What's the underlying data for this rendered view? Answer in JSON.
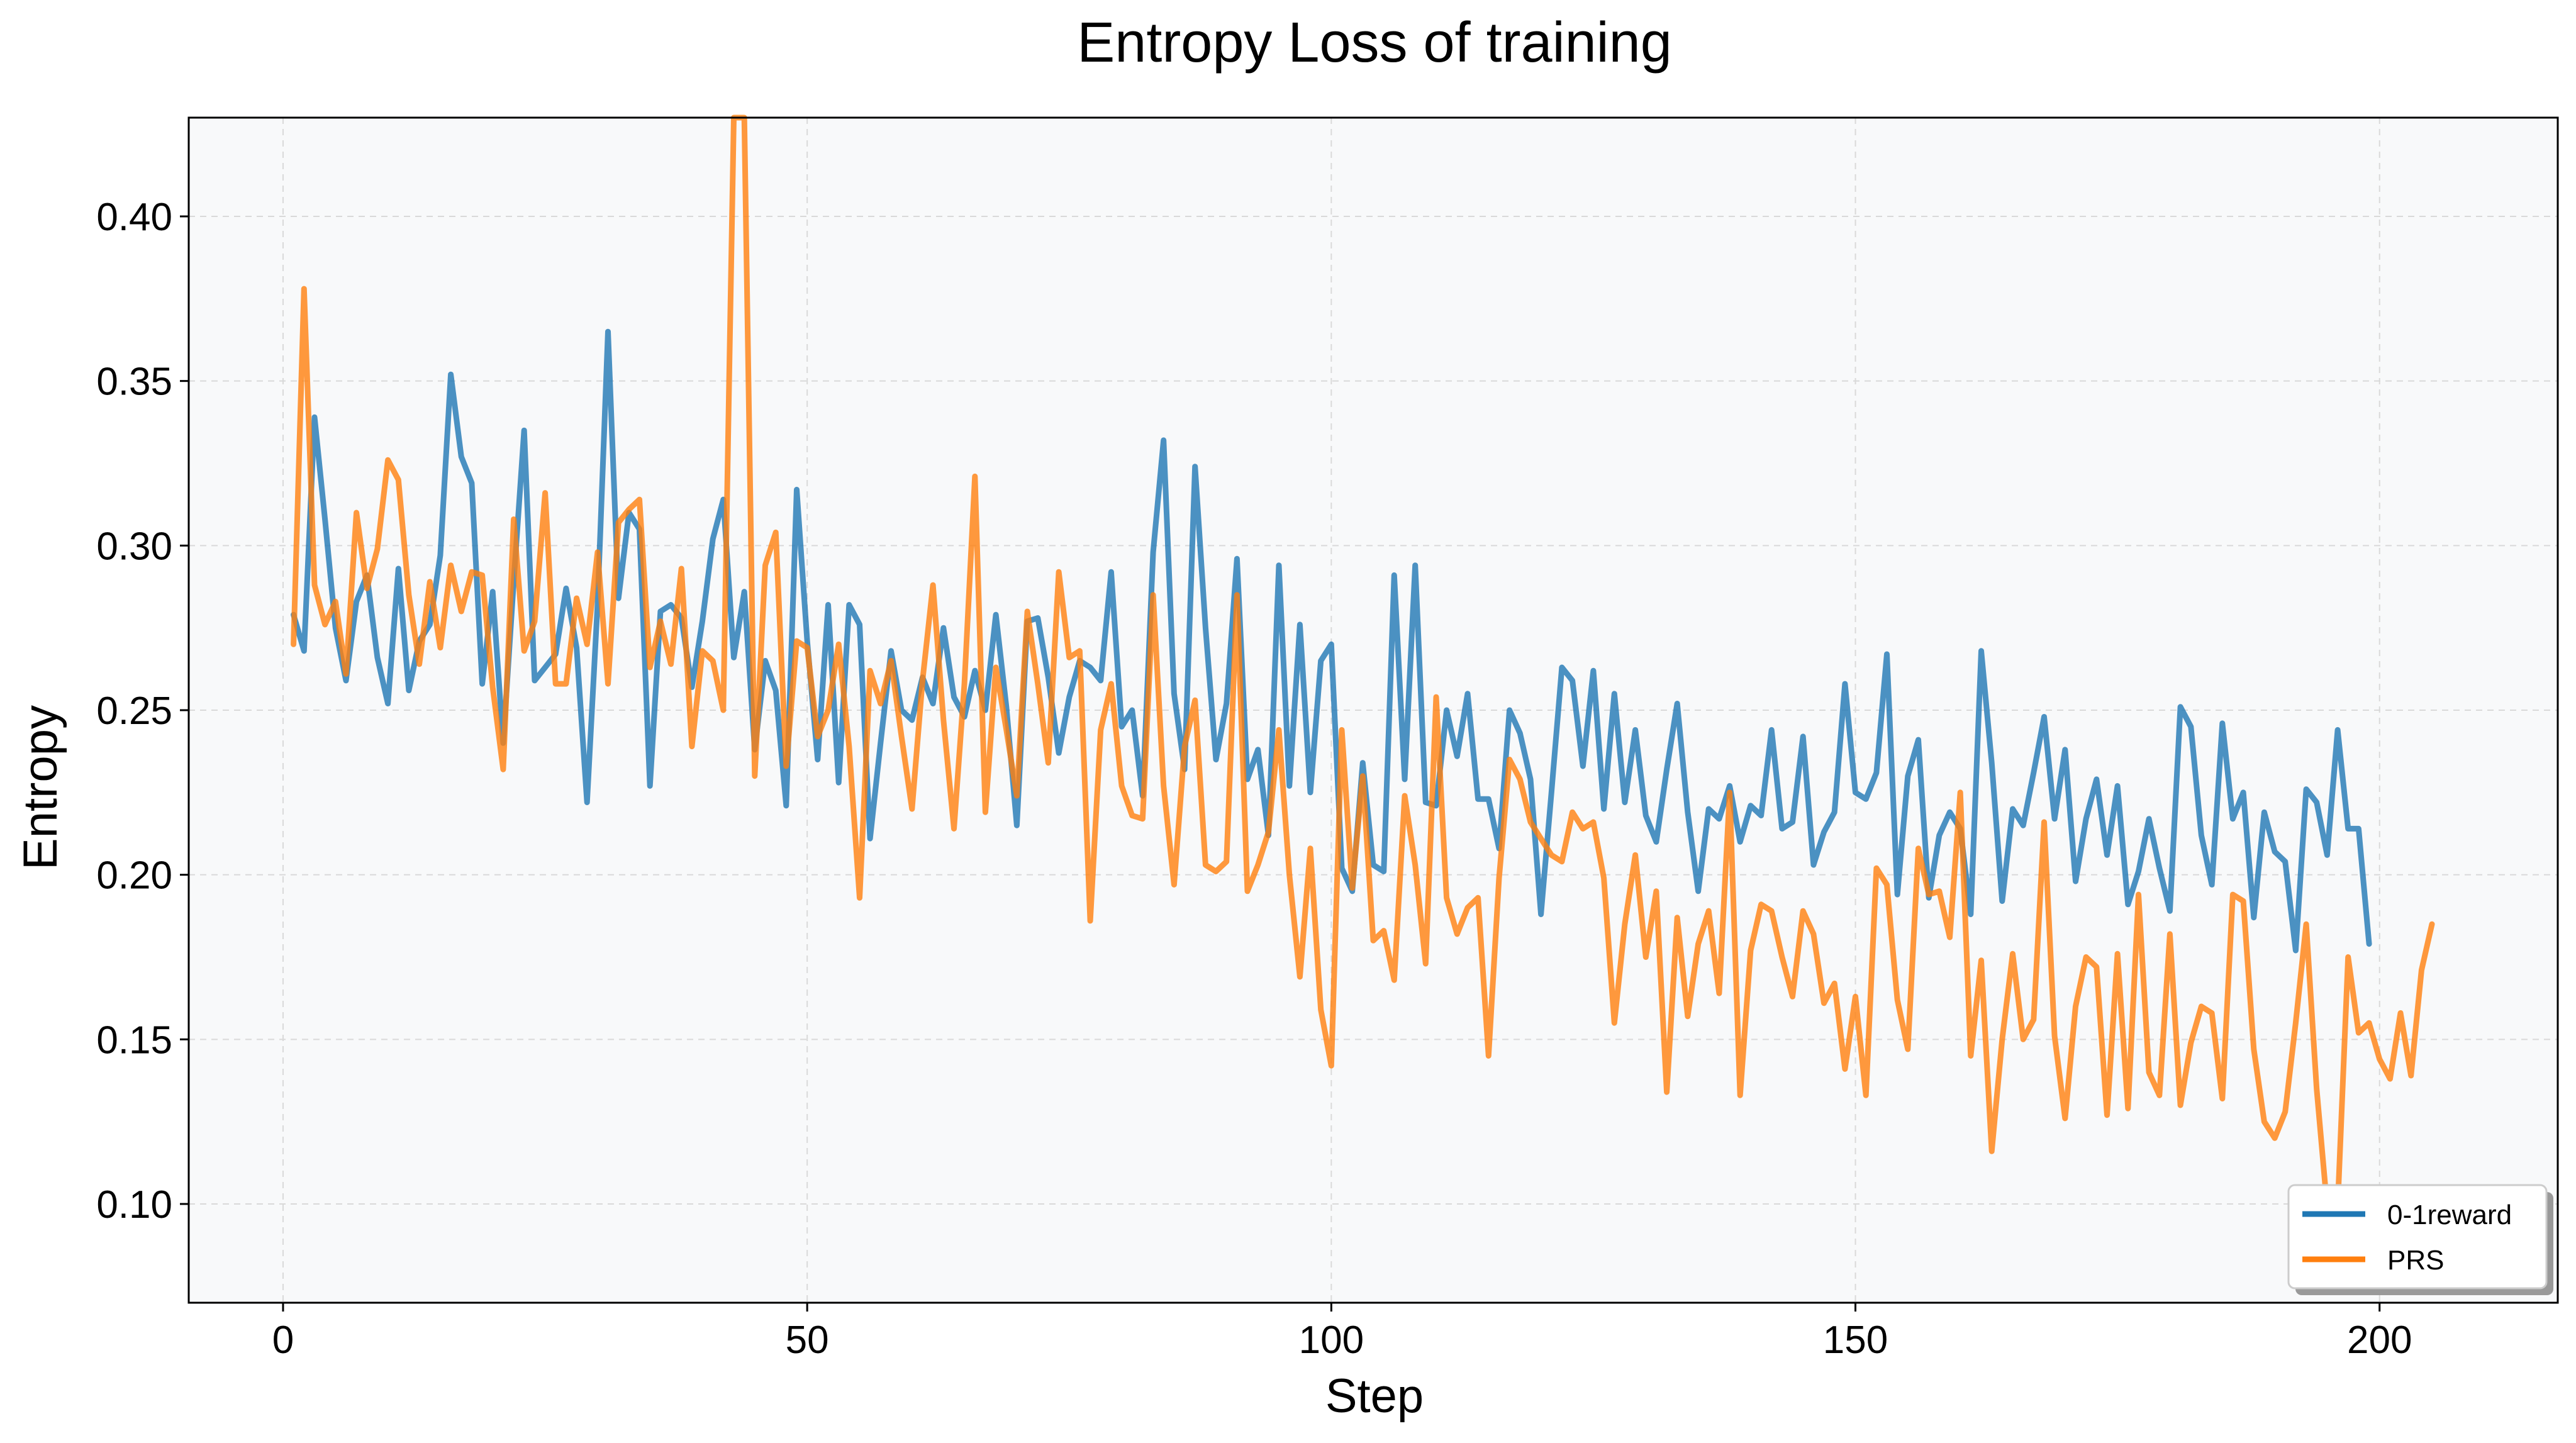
{
  "chart_data": {
    "type": "line",
    "title": "Entropy Loss of training",
    "xlabel": "Step",
    "ylabel": "Entropy",
    "xlim": [
      -9,
      217
    ],
    "ylim": [
      0.07,
      0.43
    ],
    "xticks": [
      0,
      50,
      100,
      150,
      200
    ],
    "yticks": [
      0.1,
      0.15,
      0.2,
      0.25,
      0.3,
      0.35,
      0.4
    ],
    "xtick_labels": [
      "0",
      "50",
      "100",
      "150",
      "200"
    ],
    "ytick_labels": [
      "0.10",
      "0.15",
      "0.20",
      "0.25",
      "0.30",
      "0.35",
      "0.40"
    ],
    "grid": true,
    "legend_position": "bottom-right",
    "series": [
      {
        "name": "0-1reward",
        "color": "#1f77b4",
        "x_start": 1,
        "values": [
          0.279,
          0.268,
          0.339,
          0.308,
          0.275,
          0.259,
          0.283,
          0.291,
          0.266,
          0.252,
          0.293,
          0.256,
          0.271,
          0.276,
          0.297,
          0.352,
          0.327,
          0.319,
          0.258,
          0.286,
          0.24,
          0.289,
          0.335,
          0.259,
          0.263,
          0.267,
          0.287,
          0.269,
          0.222,
          0.282,
          0.365,
          0.284,
          0.31,
          0.305,
          0.227,
          0.28,
          0.282,
          0.278,
          0.257,
          0.277,
          0.302,
          0.314,
          0.266,
          0.286,
          0.238,
          0.265,
          0.256,
          0.221,
          0.317,
          0.271,
          0.235,
          0.282,
          0.228,
          0.282,
          0.276,
          0.211,
          0.24,
          0.268,
          0.25,
          0.247,
          0.26,
          0.252,
          0.275,
          0.254,
          0.248,
          0.262,
          0.25,
          0.279,
          0.251,
          0.215,
          0.277,
          0.278,
          0.26,
          0.237,
          0.254,
          0.265,
          0.263,
          0.259,
          0.292,
          0.245,
          0.25,
          0.224,
          0.298,
          0.332,
          0.255,
          0.232,
          0.324,
          0.275,
          0.235,
          0.252,
          0.296,
          0.229,
          0.238,
          0.212,
          0.294,
          0.227,
          0.276,
          0.225,
          0.265,
          0.27,
          0.202,
          0.195,
          0.234,
          0.203,
          0.201,
          0.291,
          0.229,
          0.294,
          0.222,
          0.221,
          0.25,
          0.236,
          0.255,
          0.223,
          0.223,
          0.208,
          0.25,
          0.243,
          0.229,
          0.188,
          0.225,
          0.263,
          0.259,
          0.233,
          0.262,
          0.22,
          0.255,
          0.222,
          0.244,
          0.218,
          0.21,
          0.232,
          0.252,
          0.219,
          0.195,
          0.22,
          0.217,
          0.227,
          0.21,
          0.221,
          0.218,
          0.244,
          0.214,
          0.216,
          0.242,
          0.203,
          0.213,
          0.219,
          0.258,
          0.225,
          0.223,
          0.231,
          0.267,
          0.194,
          0.23,
          0.241,
          0.193,
          0.212,
          0.219,
          0.214,
          0.188,
          0.268,
          0.234,
          0.192,
          0.22,
          0.215,
          0.231,
          0.248,
          0.217,
          0.238,
          0.198,
          0.217,
          0.229,
          0.206,
          0.227,
          0.191,
          0.201,
          0.217,
          0.202,
          0.189,
          0.251,
          0.245,
          0.212,
          0.197,
          0.246,
          0.217,
          0.225,
          0.187,
          0.219,
          0.207,
          0.204,
          0.177,
          0.226,
          0.222,
          0.206,
          0.244,
          0.214,
          0.214,
          0.179
        ]
      },
      {
        "name": "PRS",
        "color": "#ff7f0e",
        "x_start": 1,
        "values": [
          0.27,
          0.378,
          0.288,
          0.276,
          0.283,
          0.261,
          0.31,
          0.287,
          0.299,
          0.326,
          0.32,
          0.285,
          0.264,
          0.289,
          0.269,
          0.294,
          0.28,
          0.292,
          0.291,
          0.257,
          0.232,
          0.308,
          0.268,
          0.277,
          0.316,
          0.258,
          0.258,
          0.284,
          0.27,
          0.298,
          0.258,
          0.307,
          0.311,
          0.314,
          0.263,
          0.277,
          0.264,
          0.293,
          0.239,
          0.268,
          0.265,
          0.25,
          0.43,
          0.43,
          0.23,
          0.294,
          0.304,
          0.233,
          0.271,
          0.269,
          0.242,
          0.25,
          0.27,
          0.239,
          0.193,
          0.262,
          0.252,
          0.265,
          0.242,
          0.22,
          0.259,
          0.288,
          0.247,
          0.214,
          0.258,
          0.321,
          0.219,
          0.263,
          0.244,
          0.224,
          0.28,
          0.258,
          0.234,
          0.292,
          0.266,
          0.268,
          0.186,
          0.244,
          0.258,
          0.227,
          0.218,
          0.217,
          0.285,
          0.227,
          0.197,
          0.239,
          0.253,
          0.203,
          0.201,
          0.204,
          0.285,
          0.195,
          0.203,
          0.213,
          0.244,
          0.2,
          0.169,
          0.208,
          0.159,
          0.142,
          0.244,
          0.196,
          0.23,
          0.18,
          0.183,
          0.168,
          0.224,
          0.203,
          0.173,
          0.254,
          0.193,
          0.182,
          0.19,
          0.193,
          0.145,
          0.199,
          0.235,
          0.229,
          0.216,
          0.211,
          0.206,
          0.204,
          0.219,
          0.214,
          0.216,
          0.199,
          0.155,
          0.185,
          0.206,
          0.175,
          0.195,
          0.134,
          0.187,
          0.157,
          0.179,
          0.189,
          0.164,
          0.225,
          0.133,
          0.177,
          0.191,
          0.189,
          0.175,
          0.163,
          0.189,
          0.182,
          0.161,
          0.167,
          0.141,
          0.163,
          0.133,
          0.202,
          0.197,
          0.162,
          0.147,
          0.208,
          0.194,
          0.195,
          0.181,
          0.225,
          0.145,
          0.174,
          0.116,
          0.15,
          0.176,
          0.15,
          0.156,
          0.216,
          0.151,
          0.126,
          0.16,
          0.175,
          0.172,
          0.127,
          0.176,
          0.129,
          0.194,
          0.14,
          0.133,
          0.182,
          0.13,
          0.149,
          0.16,
          0.158,
          0.132,
          0.194,
          0.192,
          0.147,
          0.125,
          0.12,
          0.128,
          0.155,
          0.185,
          0.135,
          0.099,
          0.099,
          0.175,
          0.152,
          0.155,
          0.144,
          0.138,
          0.158,
          0.139,
          0.171,
          0.185
        ]
      }
    ]
  }
}
